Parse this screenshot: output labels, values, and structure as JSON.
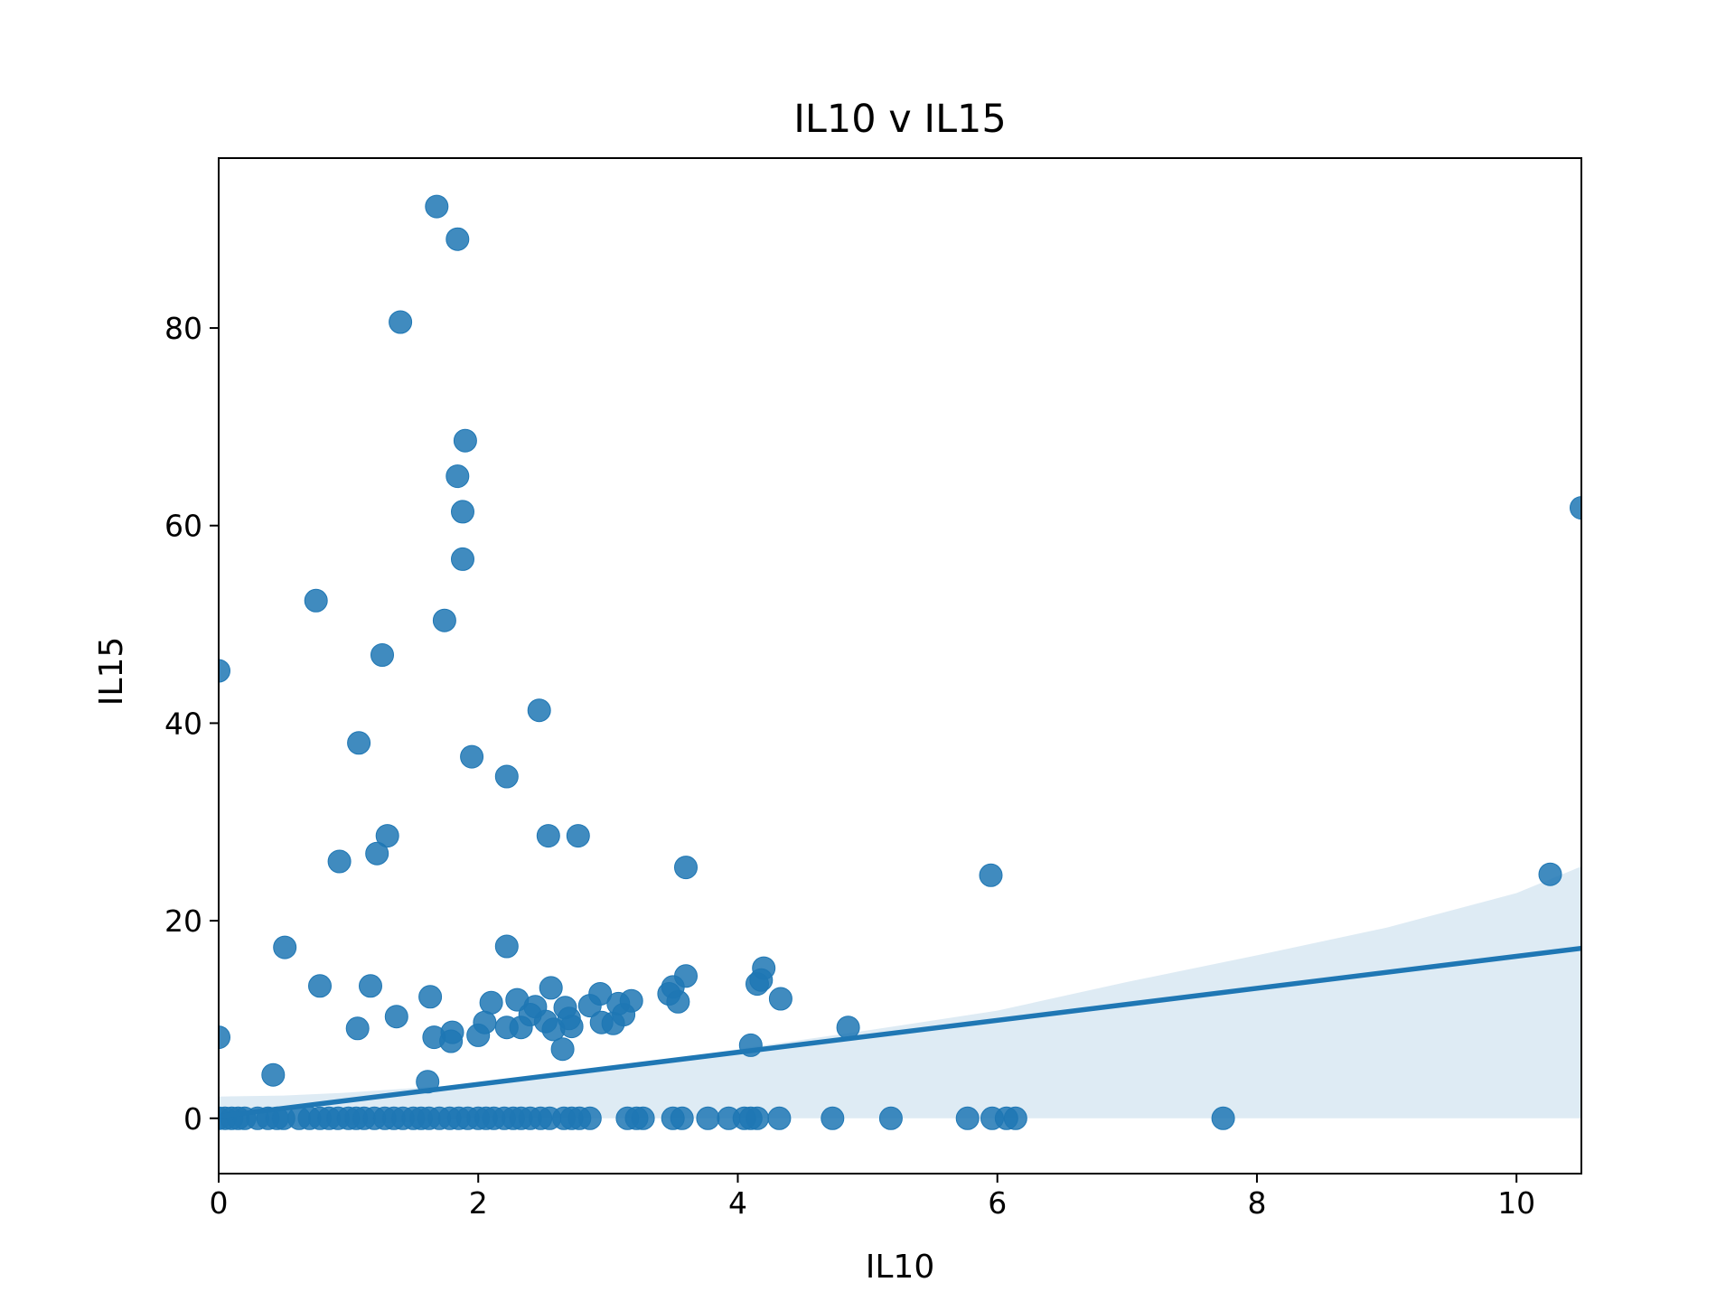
{
  "chart_data": {
    "type": "scatter",
    "title": "IL10 v IL15",
    "xlabel": "IL10",
    "ylabel": "IL15",
    "xlim": [
      0,
      10.5
    ],
    "ylim": [
      -5.6,
      97.2
    ],
    "xticks": [
      0,
      2,
      4,
      6,
      8,
      10
    ],
    "yticks": [
      0,
      20,
      40,
      60,
      80
    ],
    "grid": false,
    "colors": {
      "points": "#1f77b4",
      "line": "#1f77b4",
      "band": "#1f77b4"
    },
    "points": [
      [
        1.68,
        92.3
      ],
      [
        1.84,
        89.0
      ],
      [
        1.4,
        80.6
      ],
      [
        1.9,
        68.6
      ],
      [
        1.84,
        65.0
      ],
      [
        1.88,
        61.4
      ],
      [
        1.88,
        56.6
      ],
      [
        0.75,
        52.4
      ],
      [
        1.74,
        50.4
      ],
      [
        1.26,
        46.9
      ],
      [
        0.0,
        45.3
      ],
      [
        2.47,
        41.3
      ],
      [
        1.08,
        38.0
      ],
      [
        1.95,
        36.6
      ],
      [
        2.22,
        34.6
      ],
      [
        1.3,
        28.6
      ],
      [
        2.54,
        28.6
      ],
      [
        2.77,
        28.6
      ],
      [
        1.22,
        26.8
      ],
      [
        0.93,
        26.0
      ],
      [
        3.6,
        25.4
      ],
      [
        5.95,
        24.6
      ],
      [
        10.26,
        24.7
      ],
      [
        10.5,
        61.8
      ],
      [
        0.51,
        17.3
      ],
      [
        2.22,
        17.4
      ],
      [
        0.78,
        13.4
      ],
      [
        1.17,
        13.4
      ],
      [
        1.63,
        12.3
      ],
      [
        2.56,
        13.2
      ],
      [
        3.6,
        14.4
      ],
      [
        4.2,
        15.2
      ],
      [
        4.15,
        13.6
      ],
      [
        4.18,
        14.0
      ],
      [
        3.47,
        12.6
      ],
      [
        3.5,
        13.3
      ],
      [
        3.54,
        11.8
      ],
      [
        2.1,
        11.7
      ],
      [
        2.3,
        12.0
      ],
      [
        2.44,
        11.3
      ],
      [
        2.67,
        11.2
      ],
      [
        2.94,
        12.6
      ],
      [
        3.08,
        11.6
      ],
      [
        3.18,
        11.9
      ],
      [
        2.86,
        11.4
      ],
      [
        1.37,
        10.3
      ],
      [
        1.07,
        9.1
      ],
      [
        2.05,
        9.7
      ],
      [
        2.22,
        9.2
      ],
      [
        2.33,
        9.2
      ],
      [
        2.4,
        10.5
      ],
      [
        2.52,
        9.8
      ],
      [
        2.58,
        9.0
      ],
      [
        2.72,
        9.3
      ],
      [
        2.95,
        9.7
      ],
      [
        3.04,
        9.6
      ],
      [
        3.12,
        10.5
      ],
      [
        1.66,
        8.2
      ],
      [
        1.8,
        8.7
      ],
      [
        1.79,
        7.8
      ],
      [
        2.0,
        8.4
      ],
      [
        2.65,
        7.0
      ],
      [
        4.1,
        7.4
      ],
      [
        4.85,
        9.2
      ],
      [
        0.0,
        8.2
      ],
      [
        0.42,
        4.4
      ],
      [
        1.61,
        3.7
      ],
      [
        4.33,
        12.1
      ],
      [
        2.7,
        10.1
      ]
    ],
    "zero_x": [
      0.0,
      0.05,
      0.1,
      0.15,
      0.2,
      0.3,
      0.38,
      0.45,
      0.5,
      0.62,
      0.7,
      0.78,
      0.85,
      0.92,
      1.0,
      1.06,
      1.12,
      1.2,
      1.28,
      1.35,
      1.42,
      1.5,
      1.56,
      1.62,
      1.7,
      1.78,
      1.85,
      1.92,
      2.0,
      2.06,
      2.12,
      2.2,
      2.27,
      2.33,
      2.4,
      2.48,
      2.55,
      2.66,
      2.72,
      2.78,
      2.86,
      3.15,
      3.22,
      3.27,
      3.5,
      3.57,
      3.77,
      3.93,
      4.05,
      4.1,
      4.15,
      4.32,
      4.73,
      5.18,
      5.77,
      5.96,
      6.07,
      6.14,
      7.74
    ],
    "regression": {
      "intercept": 0.2,
      "slope": 1.62
    },
    "ci_band": {
      "x": [
        0,
        0.5,
        1,
        2,
        3,
        4,
        5,
        6,
        7,
        8,
        9,
        10,
        10.5
      ],
      "lower": [
        -1.0,
        -0.9,
        -0.7,
        0.0,
        0.0,
        0.0,
        0.0,
        0.0,
        0.0,
        0.0,
        0.0,
        0.0,
        0.0
      ],
      "upper": [
        2.2,
        2.3,
        2.6,
        3.5,
        5.1,
        7.0,
        8.9,
        10.9,
        13.8,
        16.5,
        19.3,
        22.8,
        25.5
      ]
    }
  }
}
